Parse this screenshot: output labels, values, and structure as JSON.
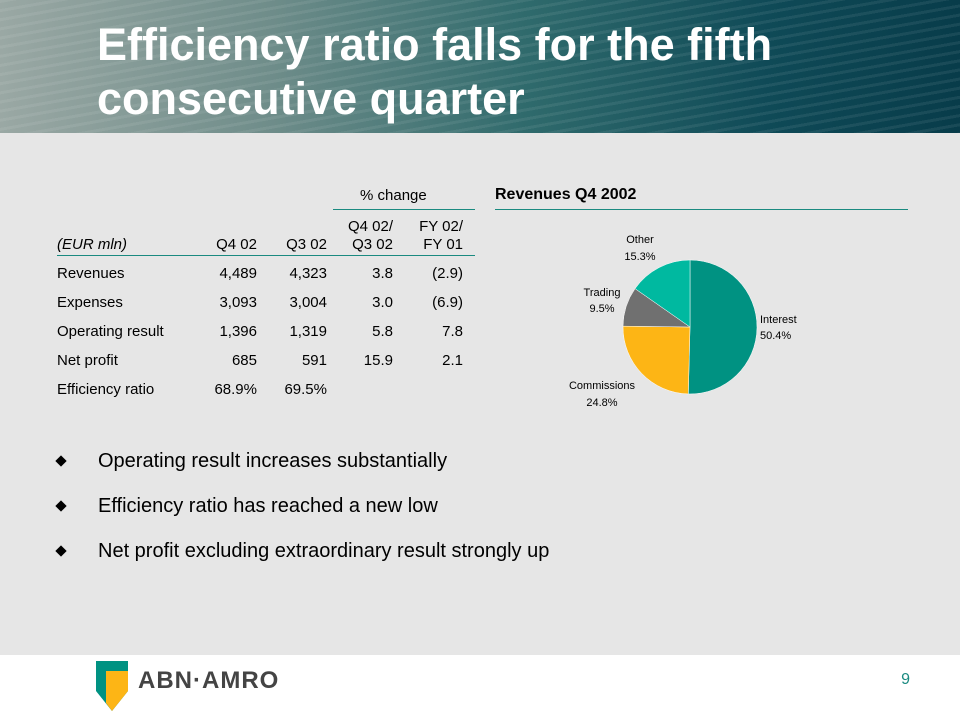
{
  "slide": {
    "title": "Efficiency ratio falls for the fifth consecutive quarter",
    "page_number": "9"
  },
  "table": {
    "unit_label": "(EUR mln)",
    "group_header": "% change",
    "columns": [
      "Q4 02",
      "Q3 02",
      "Q4 02/\nQ3 02",
      "FY 02/\nFY 01"
    ],
    "rows": [
      {
        "label": "Revenues",
        "values": [
          "4,489",
          "4,323",
          "3.8",
          "(2.9)"
        ]
      },
      {
        "label": "Expenses",
        "values": [
          "3,093",
          "3,004",
          "3.0",
          "(6.9)"
        ]
      },
      {
        "label": "Operating result",
        "values": [
          "1,396",
          "1,319",
          "5.8",
          "7.8"
        ]
      },
      {
        "label": "Net profit",
        "values": [
          "685",
          "591",
          "15.9",
          "2.1"
        ]
      },
      {
        "label": "Efficiency ratio",
        "values": [
          "68.9%",
          "69.5%",
          "",
          ""
        ]
      }
    ]
  },
  "chart_data": {
    "type": "pie",
    "title": "Revenues Q4 2002",
    "slices": [
      {
        "label": "Interest",
        "value": 50.4,
        "display": "50.4%",
        "color": "#009282"
      },
      {
        "label": "Commissions",
        "value": 24.8,
        "display": "24.8%",
        "color": "#fdb515"
      },
      {
        "label": "Trading",
        "value": 9.5,
        "display": "9.5%",
        "color": "#707070"
      },
      {
        "label": "Other",
        "value": 15.3,
        "display": "15.3%",
        "color": "#00b9a0"
      }
    ]
  },
  "bullets": [
    "Operating result increases substantially",
    "Efficiency ratio has reached a new low",
    "Net profit excluding extraordinary result strongly up"
  ],
  "footer": {
    "logo_text": "ABN·AMRO",
    "logo_colors": {
      "green": "#009282",
      "yellow": "#fdb515"
    }
  }
}
